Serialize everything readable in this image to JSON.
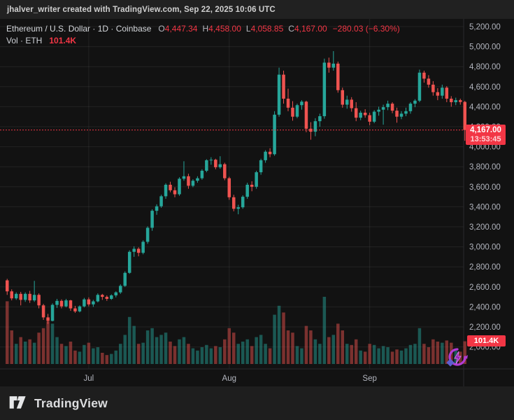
{
  "header": {
    "attribution": "jhalver_writer created with TradingView.com, Sep 22, 2025 10:06 UTC"
  },
  "legend": {
    "symbol_title": "Ethereum / U.S. Dollar · 1D · Coinbase",
    "ohlc": [
      {
        "label": "O",
        "value": "4,447.34"
      },
      {
        "label": "H",
        "value": "4,458.00"
      },
      {
        "label": "L",
        "value": "4,058.85"
      },
      {
        "label": "C",
        "value": "4,167.00"
      }
    ],
    "change": "−280.03 (−6.30%)",
    "volume_label": "Vol · ETH",
    "volume_value": "101.4K"
  },
  "price_scale": {
    "ticks": [
      "5,200.00",
      "5,000.00",
      "4,800.00",
      "4,600.00",
      "4,400.00",
      "4,200.00",
      "4,000.00",
      "3,800.00",
      "3,600.00",
      "3,400.00",
      "3,200.00",
      "3,000.00",
      "2,800.00",
      "2,600.00",
      "2,400.00",
      "2,200.00",
      "2,000.00"
    ],
    "tick_values": [
      5200,
      5000,
      4800,
      4600,
      4400,
      4200,
      4000,
      3800,
      3600,
      3400,
      3200,
      3000,
      2800,
      2600,
      2400,
      2200,
      2000
    ],
    "last_price_badge": {
      "price": "4,167.00",
      "countdown": "13:53:45"
    },
    "volume_badge": "101.4K"
  },
  "time_scale": {
    "ticks": [
      {
        "label": "Jul",
        "index": 18
      },
      {
        "label": "Aug",
        "index": 49
      },
      {
        "label": "Sep",
        "index": 80
      }
    ]
  },
  "footer": {
    "brand": "TradingView"
  },
  "colors": {
    "up": "#26a69a",
    "down": "#ef5350",
    "vol_up": "rgba(38,166,154,0.48)",
    "vol_down": "rgba(239,83,80,0.48)",
    "accent_red": "#f23645",
    "axis_text": "#b2b5be",
    "grid": "rgba(255,255,255,0.07)",
    "separator": "#2a2a2e",
    "chart_bg": "#121212"
  },
  "chart_data": {
    "type": "candlestick",
    "title": "Ethereum / U.S. Dollar",
    "interval": "1D",
    "exchange": "Coinbase",
    "last_close": 4167.0,
    "price_axis_range": [
      2000,
      5200
    ],
    "grid": true,
    "legend_position": "top-left",
    "candle_format": [
      "open",
      "high",
      "low",
      "close",
      "volume_k"
    ],
    "candles": [
      [
        2665,
        2680,
        2520,
        2555,
        280
      ],
      [
        2555,
        2575,
        2465,
        2485,
        150
      ],
      [
        2485,
        2545,
        2470,
        2530,
        90
      ],
      [
        2530,
        2550,
        2415,
        2470,
        120
      ],
      [
        2470,
        2545,
        2450,
        2530,
        100
      ],
      [
        2530,
        2560,
        2440,
        2465,
        110
      ],
      [
        2465,
        2660,
        2450,
        2520,
        95
      ],
      [
        2520,
        2535,
        2385,
        2415,
        140
      ],
      [
        2415,
        2430,
        2270,
        2295,
        160
      ],
      [
        2295,
        2330,
        2230,
        2260,
        190
      ],
      [
        2260,
        2435,
        2255,
        2420,
        180
      ],
      [
        2420,
        2480,
        2390,
        2460,
        120
      ],
      [
        2460,
        2475,
        2385,
        2405,
        90
      ],
      [
        2405,
        2480,
        2395,
        2465,
        80
      ],
      [
        2465,
        2470,
        2360,
        2385,
        100
      ],
      [
        2385,
        2410,
        2340,
        2355,
        60
      ],
      [
        2355,
        2415,
        2345,
        2405,
        55
      ],
      [
        2405,
        2490,
        2395,
        2475,
        85
      ],
      [
        2475,
        2495,
        2405,
        2425,
        95
      ],
      [
        2425,
        2470,
        2400,
        2455,
        70
      ],
      [
        2455,
        2535,
        2445,
        2520,
        75
      ],
      [
        2520,
        2530,
        2470,
        2500,
        50
      ],
      [
        2500,
        2515,
        2460,
        2480,
        40
      ],
      [
        2480,
        2525,
        2470,
        2515,
        45
      ],
      [
        2515,
        2555,
        2495,
        2545,
        60
      ],
      [
        2545,
        2625,
        2530,
        2610,
        90
      ],
      [
        2610,
        2755,
        2600,
        2740,
        130
      ],
      [
        2740,
        2965,
        2730,
        2950,
        210
      ],
      [
        2950,
        3005,
        2900,
        2980,
        170
      ],
      [
        2980,
        2995,
        2905,
        2940,
        90
      ],
      [
        2940,
        3065,
        2925,
        3050,
        95
      ],
      [
        3050,
        3205,
        3030,
        3190,
        150
      ],
      [
        3190,
        3375,
        3160,
        3360,
        160
      ],
      [
        3360,
        3425,
        3320,
        3405,
        120
      ],
      [
        3405,
        3520,
        3390,
        3505,
        130
      ],
      [
        3505,
        3635,
        3480,
        3620,
        140
      ],
      [
        3620,
        3650,
        3545,
        3565,
        100
      ],
      [
        3565,
        3595,
        3495,
        3525,
        80
      ],
      [
        3525,
        3695,
        3510,
        3680,
        110
      ],
      [
        3680,
        3855,
        3660,
        3705,
        120
      ],
      [
        3705,
        3730,
        3580,
        3610,
        90
      ],
      [
        3610,
        3675,
        3595,
        3660,
        70
      ],
      [
        3660,
        3705,
        3640,
        3685,
        60
      ],
      [
        3685,
        3775,
        3670,
        3760,
        75
      ],
      [
        3760,
        3875,
        3745,
        3865,
        85
      ],
      [
        3865,
        3895,
        3820,
        3870,
        70
      ],
      [
        3870,
        3880,
        3775,
        3795,
        80
      ],
      [
        3795,
        3905,
        3780,
        3825,
        75
      ],
      [
        3825,
        3840,
        3665,
        3685,
        110
      ],
      [
        3685,
        3700,
        3470,
        3495,
        160
      ],
      [
        3495,
        3520,
        3355,
        3380,
        140
      ],
      [
        3380,
        3420,
        3325,
        3395,
        90
      ],
      [
        3395,
        3515,
        3380,
        3500,
        100
      ],
      [
        3500,
        3640,
        3480,
        3620,
        110
      ],
      [
        3620,
        3655,
        3555,
        3600,
        80
      ],
      [
        3600,
        3760,
        3580,
        3745,
        120
      ],
      [
        3745,
        3880,
        3720,
        3865,
        130
      ],
      [
        3865,
        3965,
        3840,
        3950,
        90
      ],
      [
        3950,
        3985,
        3895,
        3925,
        70
      ],
      [
        3925,
        4355,
        3910,
        4320,
        220
      ],
      [
        4320,
        4790,
        4300,
        4720,
        260
      ],
      [
        4720,
        4760,
        4430,
        4480,
        230
      ],
      [
        4480,
        4580,
        4355,
        4390,
        150
      ],
      [
        4390,
        4455,
        4260,
        4300,
        140
      ],
      [
        4300,
        4430,
        4285,
        4415,
        80
      ],
      [
        4415,
        4465,
        4370,
        4450,
        70
      ],
      [
        4450,
        4460,
        4145,
        4180,
        170
      ],
      [
        4180,
        4245,
        4070,
        4150,
        150
      ],
      [
        4150,
        4285,
        4105,
        4255,
        110
      ],
      [
        4255,
        4330,
        4200,
        4305,
        90
      ],
      [
        4305,
        4880,
        4280,
        4840,
        300
      ],
      [
        4840,
        4890,
        4740,
        4790,
        120
      ],
      [
        4790,
        4955,
        4760,
        4830,
        130
      ],
      [
        4830,
        4850,
        4540,
        4565,
        180
      ],
      [
        4565,
        4590,
        4390,
        4420,
        150
      ],
      [
        4420,
        4510,
        4380,
        4470,
        90
      ],
      [
        4470,
        4495,
        4350,
        4385,
        85
      ],
      [
        4385,
        4445,
        4255,
        4290,
        110
      ],
      [
        4290,
        4360,
        4265,
        4340,
        60
      ],
      [
        4340,
        4375,
        4290,
        4315,
        55
      ],
      [
        4315,
        4340,
        4215,
        4250,
        90
      ],
      [
        4250,
        4365,
        4235,
        4350,
        85
      ],
      [
        4350,
        4400,
        4310,
        4370,
        70
      ],
      [
        4370,
        4420,
        4220,
        4395,
        80
      ],
      [
        4395,
        4460,
        4365,
        4430,
        75
      ],
      [
        4430,
        4445,
        4335,
        4360,
        55
      ],
      [
        4360,
        4390,
        4240,
        4300,
        65
      ],
      [
        4300,
        4355,
        4275,
        4330,
        60
      ],
      [
        4330,
        4390,
        4305,
        4355,
        70
      ],
      [
        4355,
        4445,
        4330,
        4430,
        85
      ],
      [
        4430,
        4475,
        4395,
        4460,
        90
      ],
      [
        4460,
        4770,
        4445,
        4740,
        160
      ],
      [
        4740,
        4760,
        4640,
        4680,
        90
      ],
      [
        4680,
        4715,
        4590,
        4620,
        75
      ],
      [
        4620,
        4655,
        4510,
        4545,
        110
      ],
      [
        4545,
        4585,
        4465,
        4510,
        100
      ],
      [
        4510,
        4620,
        4480,
        4590,
        95
      ],
      [
        4590,
        4605,
        4445,
        4480,
        105
      ],
      [
        4480,
        4505,
        4400,
        4445,
        95
      ],
      [
        4445,
        4490,
        4415,
        4465,
        60
      ],
      [
        4465,
        4480,
        4420,
        4447,
        55
      ],
      [
        4447.34,
        4458.0,
        4058.85,
        4167.0,
        101.4
      ]
    ]
  }
}
